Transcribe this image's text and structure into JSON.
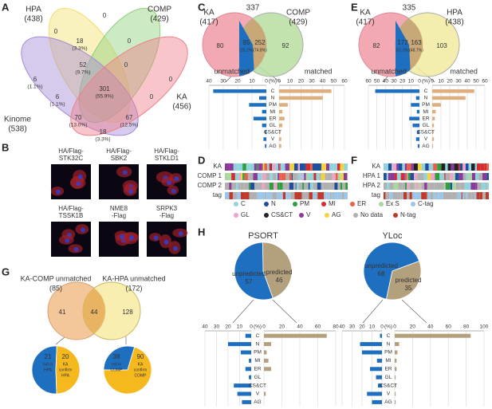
{
  "A": {
    "label": "A",
    "sets": [
      {
        "name": "HPA",
        "count": "(438)",
        "color": "#f2df6e"
      },
      {
        "name": "COMP",
        "count": "(429)",
        "color": "#8fd07a"
      },
      {
        "name": "Kinome",
        "count": "(538)",
        "color": "#a58ad6"
      },
      {
        "name": "KA",
        "count": "(456)",
        "color": "#ee7f89"
      }
    ],
    "regions": [
      [
        "0"
      ],
      [
        "18",
        "(3.3%)"
      ],
      [
        "0"
      ],
      [
        "0"
      ],
      [
        "6",
        "(1.1%)"
      ],
      [
        "52",
        "(9.7%)"
      ],
      [
        "0"
      ],
      [
        "0"
      ],
      [
        "6",
        "(1.1%)"
      ],
      [
        "301",
        "(55.9%)"
      ],
      [
        "0"
      ],
      [
        "70",
        "(13.0%)"
      ],
      [
        "67",
        "(12.5%)"
      ],
      [
        "18",
        "(3.3%)"
      ]
    ]
  },
  "B": {
    "label": "B",
    "images": [
      [
        "HA/Flag-",
        "STK32C"
      ],
      [
        "HA/Flag-",
        "SBK2"
      ],
      [
        "HA/Flag-",
        "STKLD1"
      ],
      [
        "HA/Flag-",
        "TSSK1B"
      ],
      [
        "NME8",
        "-Flag"
      ],
      [
        "SRPK3",
        "-Flag"
      ]
    ]
  },
  "C": {
    "label": "C",
    "venn": {
      "left": {
        "name": "KA",
        "count": "(417)"
      },
      "right": {
        "name": "COMP",
        "count": "(429)"
      },
      "total": "337",
      "left_only": "80",
      "right_only": "92",
      "unmatched": {
        "count": "85",
        "pct": "(25.2%)"
      },
      "matched": {
        "count": "252",
        "pct": "(74.8%)"
      }
    },
    "chart": {
      "type": "bar",
      "categories": [
        "C",
        "N",
        "PM",
        "MI",
        "ER",
        "GL",
        "CS&CT",
        "V",
        "AG"
      ],
      "unit": "(%)",
      "left": {
        "name": "unmatched",
        "color": "#1f6fc0",
        "values": [
          37,
          5,
          12,
          3,
          9,
          3,
          1,
          2,
          1
        ],
        "xlim": [
          0,
          40
        ],
        "xticks": [
          40,
          30,
          20,
          10,
          0
        ]
      },
      "right": {
        "name": "matched",
        "color": "#deae80",
        "values": [
          48,
          40,
          8,
          3,
          5,
          3,
          1,
          2,
          2
        ],
        "xlim": [
          0,
          60
        ],
        "xticks": [
          0,
          10,
          20,
          30,
          40,
          50,
          60
        ]
      }
    }
  },
  "D": {
    "label": "D",
    "rows": [
      "KA",
      "COMP 1",
      "COMP 2",
      "tag"
    ],
    "legend": [
      {
        "name": "C",
        "color": "#8fd3dc"
      },
      {
        "name": "N",
        "color": "#1f4e9c"
      },
      {
        "name": "PM",
        "color": "#2e9e3f"
      },
      {
        "name": "MI",
        "color": "#d62c2c"
      },
      {
        "name": "ER",
        "color": "#e8604a"
      },
      {
        "name": "Ex S",
        "color": "#a8d8a0"
      },
      {
        "name": "C-tag",
        "color": "#9cc6e8"
      },
      {
        "name": "GL",
        "color": "#f0a3c8"
      },
      {
        "name": "CS&CT",
        "color": "#222222"
      },
      {
        "name": "V",
        "color": "#8b3a9c"
      },
      {
        "name": "AG",
        "color": "#f3d33b"
      },
      {
        "name": "No data",
        "color": "#b0b0b0"
      },
      {
        "name": "N-tag",
        "color": "#c0392b"
      }
    ]
  },
  "E": {
    "label": "E",
    "venn": {
      "left": {
        "name": "KA",
        "count": "(417)"
      },
      "right": {
        "name": "HPA",
        "count": "(438)"
      },
      "total": "335",
      "left_only": "82",
      "right_only": "103",
      "unmatched": {
        "count": "172",
        "pct": "(51.3%)"
      },
      "matched": {
        "count": "163",
        "pct": "(48.7%)"
      }
    },
    "chart": {
      "type": "bar",
      "categories": [
        "C",
        "N",
        "PM",
        "MI",
        "ER",
        "GL",
        "CS&CT",
        "V",
        "AG"
      ],
      "unit": "(%)",
      "left": {
        "name": "unmatched",
        "color": "#1f6fc0",
        "values": [
          52,
          4,
          10,
          3,
          12,
          8,
          3,
          4,
          2
        ],
        "xlim": [
          0,
          60
        ],
        "xticks": [
          60,
          50,
          40,
          30,
          20,
          10,
          0
        ]
      },
      "right": {
        "name": "matched",
        "color": "#deae80",
        "values": [
          48,
          38,
          10,
          4,
          3,
          2,
          1,
          2,
          1
        ],
        "xlim": [
          0,
          60
        ],
        "xticks": [
          0,
          10,
          20,
          30,
          40,
          50,
          60
        ]
      }
    }
  },
  "F": {
    "label": "F",
    "rows": [
      "KA",
      "HPA 1",
      "HPA 2",
      "tag"
    ]
  },
  "G": {
    "label": "G",
    "venn": {
      "left": {
        "name": "KA-COMP unmatched",
        "count": "(85)"
      },
      "right": {
        "name": "KA-HPA unmatched",
        "count": "(172)"
      },
      "left_only": "41",
      "both": "44",
      "right_only": "128"
    },
    "pies": [
      {
        "type": "pie",
        "values": [
          21,
          20
        ],
        "labels": [
          [
            "not in",
            "HPA"
          ],
          [
            "KA",
            "confirm",
            "HPA"
          ]
        ],
        "colors": [
          "#1f6fc0",
          "#f5b91e"
        ]
      },
      {
        "type": "pie",
        "values": [
          38,
          90
        ],
        "labels": [
          [
            "not in",
            "COMP"
          ],
          [
            "KA",
            "confirm",
            "COMP"
          ]
        ],
        "colors": [
          "#1f6fc0",
          "#f5b91e"
        ]
      }
    ]
  },
  "H": {
    "label": "H",
    "charts": [
      {
        "title": "PSORT",
        "pie": {
          "type": "pie",
          "names": [
            "unpredicted",
            "predicted"
          ],
          "values": [
            57,
            46
          ],
          "colors": [
            "#1f6fc0",
            "#b3a07c"
          ]
        },
        "bars": {
          "type": "bar",
          "categories": [
            "C",
            "N",
            "PM",
            "MI",
            "ER",
            "GL",
            "CS&CT",
            "V",
            "AG"
          ],
          "unit": "(%)",
          "left": {
            "color": "#1f6fc0",
            "values": [
              5,
              20,
              9,
              2,
              5,
              2,
              15,
              12,
              8
            ],
            "xlim": [
              0,
              40
            ],
            "xticks": [
              40,
              30,
              20,
              10,
              0
            ]
          },
          "right": {
            "color": "#b3a07c",
            "values": [
              70,
              8,
              3,
              5,
              8,
              0,
              0,
              2,
              0
            ],
            "xlim": [
              0,
              80
            ],
            "xticks": [
              0,
              20,
              40,
              60,
              80
            ]
          }
        }
      },
      {
        "title": "YLoc",
        "pie": {
          "type": "pie",
          "names": [
            "unpredicted",
            "predicted"
          ],
          "values": [
            68,
            35
          ],
          "colors": [
            "#1f6fc0",
            "#b3a07c"
          ]
        },
        "bars": {
          "type": "bar",
          "categories": [
            "C",
            "N",
            "PM",
            "MI",
            "ER",
            "GL",
            "CS&CT",
            "V",
            "AG"
          ],
          "unit": "(%)",
          "left": {
            "color": "#1f6fc0",
            "values": [
              2,
              22,
              20,
              5,
              12,
              6,
              4,
              15,
              10
            ],
            "xlim": [
              0,
              40
            ],
            "xticks": [
              40,
              30,
              20,
              10,
              0
            ]
          },
          "right": {
            "color": "#b3a07c",
            "values": [
              85,
              5,
              3,
              2,
              2,
              1,
              1,
              1,
              1
            ],
            "xlim": [
              0,
              100
            ],
            "xticks": [
              0,
              20,
              40,
              60,
              80,
              100
            ]
          }
        }
      }
    ]
  }
}
